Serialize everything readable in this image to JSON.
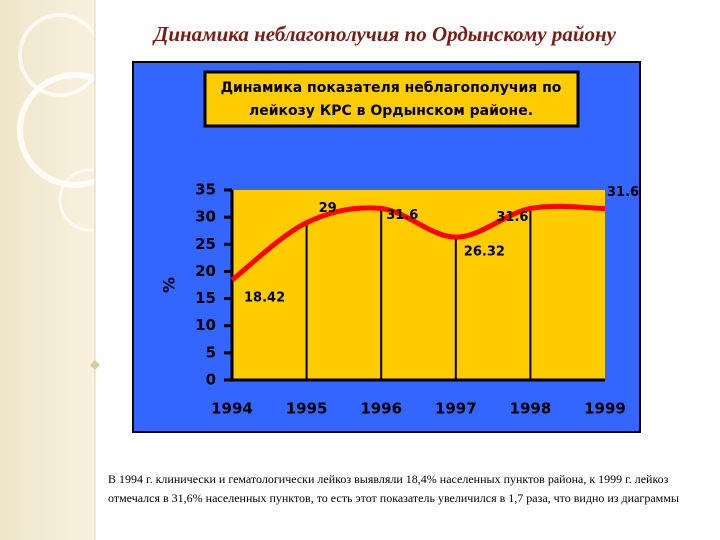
{
  "title": "Динамика неблагополучия по Ордынскому району",
  "chart_data": {
    "type": "line",
    "title": "Динамика показателя неблагополучия по лейкозу КРС в Ордынском районе.",
    "ylabel": "%",
    "categories": [
      "1994",
      "1995",
      "1996",
      "1997",
      "1998",
      "1999"
    ],
    "values": [
      18.42,
      29,
      31.6,
      26.32,
      31.6,
      31.6
    ],
    "color": "#ff0000",
    "ylim": [
      0,
      35
    ],
    "yticks": [
      0,
      5,
      10,
      15,
      20,
      25,
      30,
      35
    ],
    "grid": false
  },
  "note": "В 1994 г. клинически и гематологически лейкоз выявляли 18,4% населенных пунктов района, к 1999 г. лейкоз отмечался в 31,6% населенных пунктов, то есть этот показатель увеличился в 1,7 раза, что видно из диаграммы"
}
